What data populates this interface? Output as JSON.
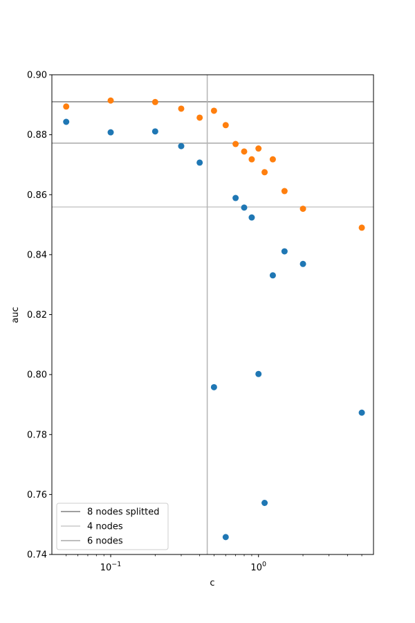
{
  "chart_data": {
    "type": "scatter",
    "xlabel": "c",
    "ylabel": "auc",
    "xscale": "log",
    "xlim": [
      0.04,
      6.0
    ],
    "ylim": [
      0.74,
      0.9
    ],
    "y_ticks": [
      0.74,
      0.76,
      0.78,
      0.8,
      0.82,
      0.84,
      0.86,
      0.88,
      0.9
    ],
    "y_tick_labels": [
      "0.74",
      "0.76",
      "0.78",
      "0.80",
      "0.82",
      "0.84",
      "0.86",
      "0.88",
      "0.90"
    ],
    "x_ticks": [
      {
        "value": 0.1,
        "base": "10",
        "exp": "−1"
      },
      {
        "value": 1,
        "base": "10",
        "exp": "0"
      }
    ],
    "grid": false,
    "series": [
      {
        "color": "#1f77b4",
        "x": [
          0.05,
          0.1,
          0.2,
          0.3,
          0.4,
          0.5,
          0.6,
          0.7,
          0.8,
          0.9,
          1.0,
          1.1,
          1.25,
          1.5,
          2.0,
          5.0
        ],
        "y": [
          0.8843,
          0.8808,
          0.8811,
          0.8762,
          0.8707,
          0.7958,
          0.7458,
          0.8589,
          0.8557,
          0.8524,
          0.8002,
          0.7572,
          0.8331,
          0.8411,
          0.8369,
          0.7873
        ]
      },
      {
        "color": "#ff7f0e",
        "x": [
          0.05,
          0.1,
          0.2,
          0.3,
          0.4,
          0.5,
          0.6,
          0.7,
          0.8,
          0.9,
          1.0,
          1.1,
          1.25,
          1.5,
          2.0,
          5.0
        ],
        "y": [
          0.8894,
          0.8914,
          0.8909,
          0.8887,
          0.8857,
          0.888,
          0.8832,
          0.8769,
          0.8744,
          0.8718,
          0.8754,
          0.8675,
          0.8718,
          0.8612,
          0.8553,
          0.849
        ]
      }
    ],
    "hlines": [
      {
        "y": 0.891,
        "label": "8 nodes splitted",
        "color": "#808080",
        "opacity": 1.0
      },
      {
        "y": 0.8559,
        "label": "4 nodes",
        "color": "#c8c8c8",
        "opacity": 1.0
      },
      {
        "y": 0.8772,
        "label": "6 nodes",
        "color": "#a8a8a8",
        "opacity": 1.0
      }
    ],
    "vline": {
      "x": 0.45,
      "color": "#b4b4b4"
    },
    "legend_position": "lower-left"
  }
}
